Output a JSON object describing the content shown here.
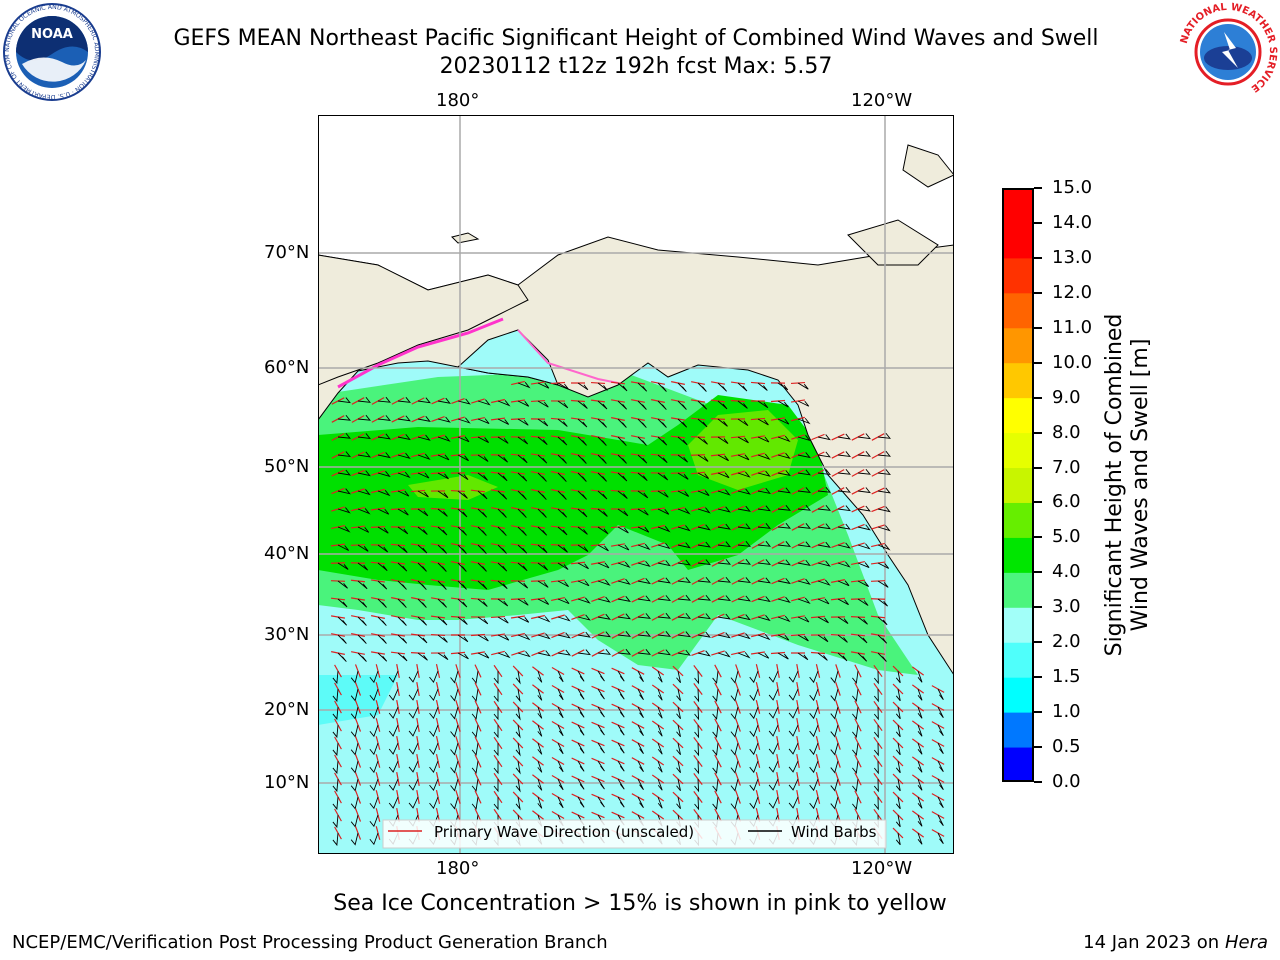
{
  "title": {
    "line1": "GEFS MEAN Northeast Pacific Significant Height of Combined Wind Waves and Swell",
    "line2": "20230112 t12z 192h fcst   Max: 5.57"
  },
  "map": {
    "lon_labels": [
      "180°",
      "120°W"
    ],
    "lat_labels": [
      "70°N",
      "60°N",
      "50°N",
      "40°N",
      "30°N",
      "20°N",
      "10°N"
    ],
    "legend": {
      "wave_direction": "Primary Wave Direction (unscaled)",
      "wind_barbs": "Wind Barbs",
      "wave_color": "#dd2222",
      "barb_color": "#000000"
    },
    "land_color": "#efecdc",
    "ocean_fields": [
      {
        "level": "2.0-3.0",
        "color": "#9ffbf9"
      },
      {
        "level": "3.0-4.0",
        "color": "#4af37c"
      },
      {
        "level": "4.0-5.0",
        "color": "#00e000"
      },
      {
        "level": "5.0-6.0",
        "color": "#62e800"
      }
    ]
  },
  "colorbar": {
    "title_line1": "Significant Height of Combined",
    "title_line2": "Wind Waves and Swell [m]",
    "ticks": [
      "0.0",
      "0.5",
      "1.0",
      "1.5",
      "2.0",
      "3.0",
      "4.0",
      "5.0",
      "6.0",
      "7.0",
      "8.0",
      "9.0",
      "10.0",
      "11.0",
      "12.0",
      "13.0",
      "14.0",
      "15.0"
    ],
    "colors": [
      "#0000ff",
      "#0078ff",
      "#00ffff",
      "#4ffffb",
      "#a2fff9",
      "#4cf57e",
      "#00e600",
      "#66ee00",
      "#c8f500",
      "#e6ff00",
      "#ffff00",
      "#ffc800",
      "#ff9600",
      "#ff6400",
      "#ff3200",
      "#ff0000",
      "#ff0000"
    ]
  },
  "footer": {
    "note": "Sea Ice Concentration > 15% is shown in pink to yellow",
    "credit": "NCEP/EMC/Verification Post Processing Product Generation Branch",
    "date": "14 Jan 2023 on",
    "machine": "Hera"
  },
  "logos": {
    "noaa_text": "NOAA",
    "noaa_ring": "NATIONAL OCEANIC AND ATMOSPHERIC ADMINISTRATION · U.S. DEPARTMENT OF COMMERCE ·",
    "nws_ring": "NATIONAL WEATHER SERVICE"
  }
}
